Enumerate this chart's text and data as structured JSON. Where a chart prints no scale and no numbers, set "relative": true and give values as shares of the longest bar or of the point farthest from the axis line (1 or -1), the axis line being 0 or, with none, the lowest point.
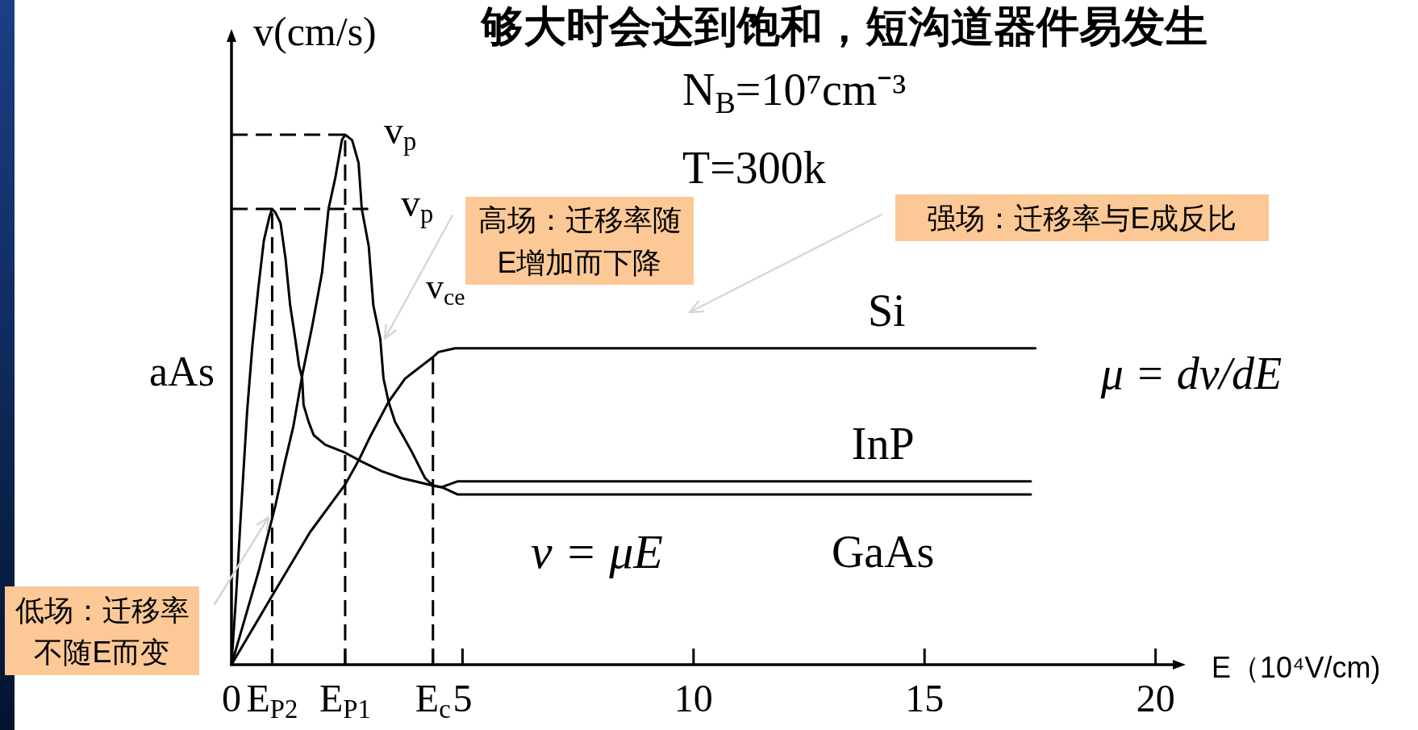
{
  "chart_data": {
    "type": "line",
    "title": "够大时会达到饱和，短沟道器件易发生",
    "xlabel": "E（10⁴V/cm)",
    "ylabel": "v(cm/s)",
    "relative": true,
    "xlim": [
      0,
      20.6
    ],
    "xticks": [
      0,
      {
        "value": 0.88,
        "label": "E$_{P2}$"
      },
      {
        "value": 2.46,
        "label": "E$_{P1}$"
      },
      {
        "value": 4.36,
        "label": "E$_{c}$"
      },
      5,
      10,
      15,
      20
    ],
    "series": [
      {
        "name": "Si",
        "color": "#000000",
        "x": [
          0,
          0.88,
          1.7,
          2.46,
          2.75,
          3.0,
          3.4,
          3.76,
          4.37,
          4.48,
          4.84,
          17.4
        ],
        "values": [
          0,
          0.13,
          0.25,
          0.34,
          0.385,
          0.43,
          0.496,
          0.54,
          0.581,
          0.59,
          0.597,
          0.597
        ]
      },
      {
        "name": "InP",
        "color": "#000000",
        "x": [
          0,
          0.3,
          0.6,
          0.95,
          1.15,
          1.34,
          1.54,
          1.75,
          1.96,
          2.1,
          2.25,
          2.39,
          2.46,
          2.61,
          2.75,
          2.82,
          2.97,
          3.07,
          3.22,
          3.29,
          3.4,
          3.54,
          3.9,
          4.19,
          4.36,
          4.55,
          4.9,
          17.3
        ],
        "values": [
          0,
          0.09,
          0.18,
          0.3,
          0.38,
          0.45,
          0.55,
          0.64,
          0.74,
          0.86,
          0.92,
          0.99,
          1,
          0.99,
          0.947,
          0.86,
          0.79,
          0.678,
          0.615,
          0.54,
          0.496,
          0.458,
          0.402,
          0.352,
          0.338,
          0.335,
          0.346,
          0.346
        ]
      },
      {
        "name": "GaAs",
        "color": "#000000",
        "x": [
          0,
          0.1,
          0.2,
          0.34,
          0.45,
          0.58,
          0.7,
          0.82,
          0.88,
          0.95,
          1.06,
          1.17,
          1.27,
          1.38,
          1.46,
          1.53,
          1.56,
          1.67,
          1.78,
          2.03,
          2.46,
          2.82,
          3.25,
          3.68,
          4.36,
          4.55,
          4.9,
          17.3
        ],
        "values": [
          0,
          0.13,
          0.28,
          0.48,
          0.6,
          0.71,
          0.8,
          0.845,
          0.86,
          0.853,
          0.834,
          0.766,
          0.678,
          0.615,
          0.565,
          0.54,
          0.49,
          0.458,
          0.433,
          0.415,
          0.4,
          0.383,
          0.365,
          0.352,
          0.338,
          0.335,
          0.321,
          0.321
        ]
      },
      {
        "color": "#000000",
        "line_style": "dashed",
        "x": [
          0,
          2.53
        ],
        "values": [
          1,
          1
        ]
      },
      {
        "color": "#000000",
        "line_style": "dashed",
        "x": [
          0,
          2.96
        ],
        "values": [
          0.86,
          0.86
        ]
      },
      {
        "color": "#000000",
        "line_style": "dashed",
        "x": [
          0.88,
          0.88
        ],
        "values": [
          0,
          0.86
        ]
      },
      {
        "color": "#000000",
        "line_style": "dashed",
        "x": [
          2.46,
          2.46
        ],
        "values": [
          0,
          1
        ]
      },
      {
        "color": "#000000",
        "line_style": "dashed",
        "x": [
          4.36,
          4.36
        ],
        "values": [
          0,
          0.58
        ]
      }
    ],
    "annotations": [
      "N$_{B}$=10⁷cm⁻³",
      "T=300k",
      "高场：迁移率随E增加而下降",
      "强场：迁移率与E成反比",
      "低场：迁移率不随E而变",
      "v = μE",
      "μ = dv/dE",
      "aAs",
      "v$_{p}$",
      "v$_{p}$",
      "v$_{ce}$"
    ]
  }
}
